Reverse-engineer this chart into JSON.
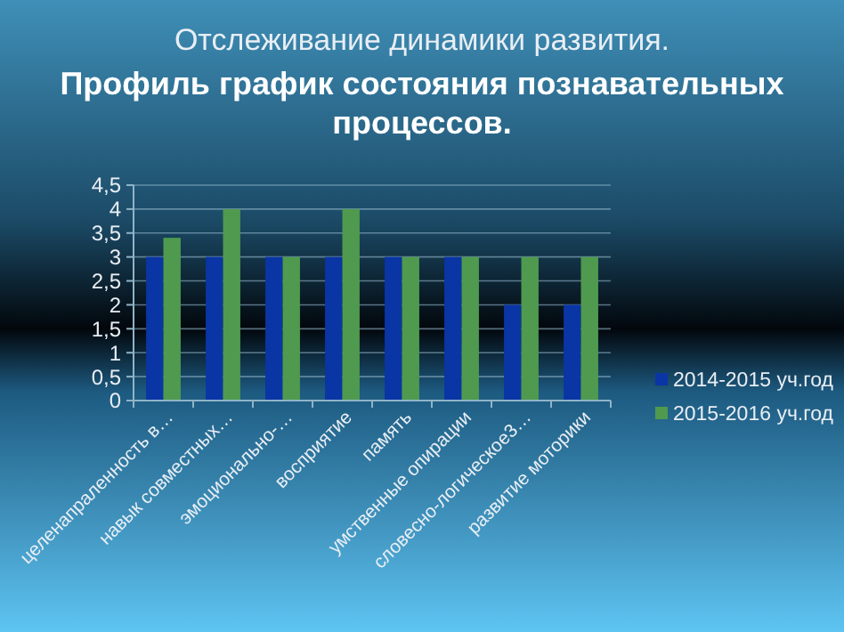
{
  "chart_data": {
    "type": "bar",
    "title": "Отслеживание динамики развития.",
    "subtitle": "Профиль график состояния познавательных процессов.",
    "categories": [
      "целенапраленность в…",
      "навык совместных…",
      "эмоционально-…",
      "восприятие",
      "память",
      "умственные опирации",
      "словесно-логическое3…",
      "развитие моторики"
    ],
    "series": [
      {
        "name": "2014-2015 уч.год",
        "color": "#0a35a5",
        "values": [
          3,
          3,
          3,
          3,
          3,
          3,
          2,
          2
        ]
      },
      {
        "name": "2015-2016 уч.год",
        "color": "#4f9a4f",
        "values": [
          3.4,
          4,
          3,
          4,
          3,
          3,
          3,
          3
        ]
      }
    ],
    "ylim": [
      0,
      4.5
    ],
    "yticks": [
      0,
      {
        "value": 0.5,
        "label": "0,5"
      },
      1,
      {
        "value": 1.5,
        "label": "1,5"
      },
      2,
      {
        "value": 2.5,
        "label": "2,5"
      },
      3,
      {
        "value": 3.5,
        "label": "3,5"
      },
      4,
      {
        "value": 4.5,
        "label": "4,5"
      }
    ],
    "grid": "y",
    "legend": "right"
  }
}
